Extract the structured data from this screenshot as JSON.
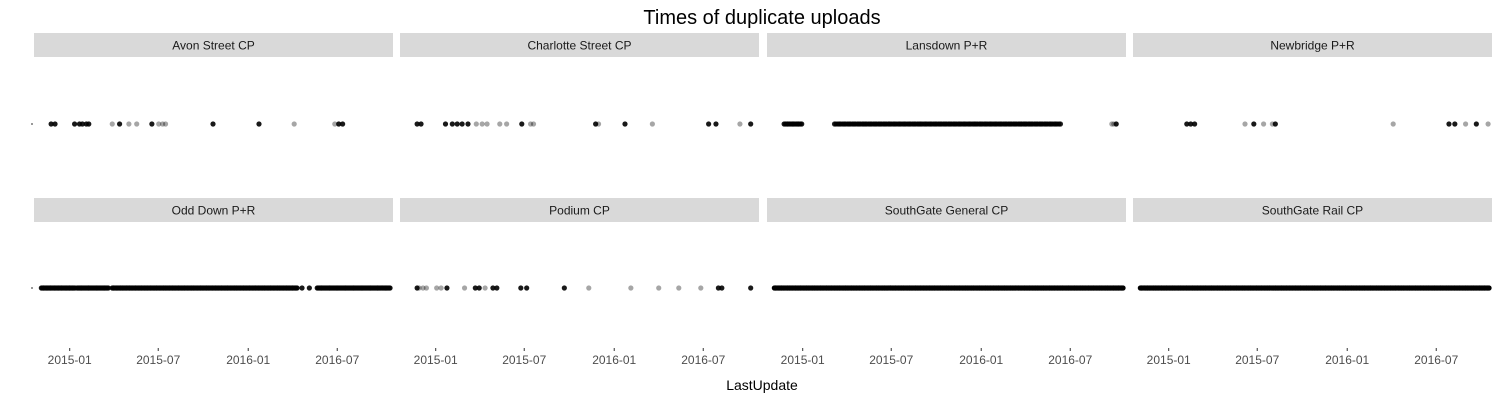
{
  "chart_data": {
    "type": "scatter",
    "title": "Times of duplicate uploads",
    "xlabel": "LastUpdate",
    "ylabel": "",
    "xlim": [
      "2014-10-20",
      "2016-10-23"
    ],
    "x_ticks": [
      {
        "date": "2015-01-01",
        "label": "2015-01"
      },
      {
        "date": "2015-07-01",
        "label": "2015-07"
      },
      {
        "date": "2016-01-01",
        "label": "2016-01"
      },
      {
        "date": "2016-07-01",
        "label": "2016-07"
      }
    ],
    "y_ticks": [
      ""
    ],
    "grid": false,
    "colors": {
      "point": "#000000",
      "strip": "#d9d9d9",
      "strip_text": "#1a1a1a",
      "axis_text": "#4d4d4d",
      "title": "#000000"
    },
    "panels": [
      {
        "label": "Avon Street CP",
        "points": [
          {
            "x": "2014-11-24",
            "o": 0.9
          },
          {
            "x": "2014-12-02",
            "o": 0.9
          },
          {
            "x": "2015-01-11",
            "o": 0.9
          },
          {
            "x": "2015-01-21",
            "o": 0.9
          },
          {
            "x": "2015-01-27",
            "o": 0.9
          },
          {
            "x": "2015-02-04",
            "o": 0.9
          },
          {
            "x": "2015-02-09",
            "o": 0.9
          },
          {
            "x": "2015-03-29",
            "o": 0.35
          },
          {
            "x": "2015-04-13",
            "o": 0.9
          },
          {
            "x": "2015-05-02",
            "o": 0.35
          },
          {
            "x": "2015-05-18",
            "o": 0.35
          },
          {
            "x": "2015-06-18",
            "o": 0.9
          },
          {
            "x": "2015-07-02",
            "o": 0.35
          },
          {
            "x": "2015-07-10",
            "o": 0.35
          },
          {
            "x": "2015-07-16",
            "o": 0.35
          },
          {
            "x": "2015-10-21",
            "o": 0.9
          },
          {
            "x": "2016-01-23",
            "o": 0.9
          },
          {
            "x": "2016-04-04",
            "o": 0.35
          },
          {
            "x": "2016-06-26",
            "o": 0.35
          },
          {
            "x": "2016-07-04",
            "o": 0.9
          },
          {
            "x": "2016-07-12",
            "o": 0.9
          }
        ]
      },
      {
        "label": "Charlotte Street CP",
        "points": [
          {
            "x": "2014-11-24",
            "o": 0.9
          },
          {
            "x": "2014-12-02",
            "o": 0.9
          },
          {
            "x": "2015-01-21",
            "o": 0.9
          },
          {
            "x": "2015-02-04",
            "o": 0.9
          },
          {
            "x": "2015-02-14",
            "o": 0.9
          },
          {
            "x": "2015-02-24",
            "o": 0.9
          },
          {
            "x": "2015-03-08",
            "o": 0.9
          },
          {
            "x": "2015-03-25",
            "o": 0.35
          },
          {
            "x": "2015-04-06",
            "o": 0.35
          },
          {
            "x": "2015-04-16",
            "o": 0.35
          },
          {
            "x": "2015-05-12",
            "o": 0.35
          },
          {
            "x": "2015-05-26",
            "o": 0.35
          },
          {
            "x": "2015-06-26",
            "o": 0.9
          },
          {
            "x": "2015-07-14",
            "o": 0.35
          },
          {
            "x": "2015-07-20",
            "o": 0.35
          },
          {
            "x": "2015-11-24",
            "o": 0.9
          },
          {
            "x": "2015-11-30",
            "o": 0.35
          },
          {
            "x": "2016-01-23",
            "o": 0.9
          },
          {
            "x": "2016-03-19",
            "o": 0.35
          },
          {
            "x": "2016-07-12",
            "o": 0.9
          },
          {
            "x": "2016-07-27",
            "o": 0.9
          },
          {
            "x": "2016-09-14",
            "o": 0.35
          },
          {
            "x": "2016-10-06",
            "o": 0.9
          }
        ]
      },
      {
        "label": "Lansdown P+R",
        "dense": [
          {
            "from": "2014-11-24",
            "to": "2014-12-30",
            "n": 14,
            "o": 0.9
          },
          {
            "from": "2015-03-07",
            "to": "2016-06-11",
            "n": 140,
            "o": 0.85
          }
        ],
        "points": [
          {
            "x": "2016-03-23",
            "o": 0.35
          },
          {
            "x": "2016-04-01",
            "o": 0.35
          },
          {
            "x": "2016-09-24",
            "o": 0.35
          },
          {
            "x": "2016-09-28",
            "o": 0.35
          },
          {
            "x": "2016-10-03",
            "o": 0.9
          }
        ]
      },
      {
        "label": "Newbridge P+R",
        "points": [
          {
            "x": "2015-02-07",
            "o": 0.9
          },
          {
            "x": "2015-02-15",
            "o": 0.9
          },
          {
            "x": "2015-02-23",
            "o": 0.9
          },
          {
            "x": "2015-06-06",
            "o": 0.35
          },
          {
            "x": "2015-06-24",
            "o": 0.9
          },
          {
            "x": "2015-07-14",
            "o": 0.35
          },
          {
            "x": "2015-08-01",
            "o": 0.35
          },
          {
            "x": "2015-08-07",
            "o": 0.9
          },
          {
            "x": "2016-04-04",
            "o": 0.35
          },
          {
            "x": "2016-07-27",
            "o": 0.9
          },
          {
            "x": "2016-08-08",
            "o": 0.9
          },
          {
            "x": "2016-08-30",
            "o": 0.35
          },
          {
            "x": "2016-09-21",
            "o": 0.9
          },
          {
            "x": "2016-10-15",
            "o": 0.35
          }
        ]
      },
      {
        "label": "Odd Down P+R",
        "dense": [
          {
            "from": "2014-11-04",
            "to": "2015-01-12",
            "n": 40,
            "o": 0.9
          },
          {
            "from": "2015-01-16",
            "to": "2015-03-21",
            "n": 35,
            "o": 0.9
          },
          {
            "from": "2015-03-29",
            "to": "2016-04-10",
            "n": 220,
            "o": 0.9
          },
          {
            "from": "2016-05-21",
            "to": "2016-10-17",
            "n": 80,
            "o": 0.9
          }
        ],
        "points": [
          {
            "x": "2016-04-20",
            "o": 0.9
          },
          {
            "x": "2016-05-05",
            "o": 0.9
          }
        ]
      },
      {
        "label": "Podium CP",
        "points": [
          {
            "x": "2014-11-24",
            "o": 0.9
          },
          {
            "x": "2014-11-28",
            "o": 0.35
          },
          {
            "x": "2014-12-06",
            "o": 0.35
          },
          {
            "x": "2014-12-13",
            "o": 0.35
          },
          {
            "x": "2015-01-03",
            "o": 0.35
          },
          {
            "x": "2015-01-12",
            "o": 0.35
          },
          {
            "x": "2015-01-24",
            "o": 0.9
          },
          {
            "x": "2015-03-01",
            "o": 0.35
          },
          {
            "x": "2015-03-23",
            "o": 0.9
          },
          {
            "x": "2015-03-31",
            "o": 0.9
          },
          {
            "x": "2015-04-12",
            "o": 0.35
          },
          {
            "x": "2015-04-28",
            "o": 0.9
          },
          {
            "x": "2015-05-06",
            "o": 0.9
          },
          {
            "x": "2015-06-24",
            "o": 0.9
          },
          {
            "x": "2015-07-06",
            "o": 0.9
          },
          {
            "x": "2015-09-21",
            "o": 0.9
          },
          {
            "x": "2015-11-10",
            "o": 0.35
          },
          {
            "x": "2016-02-04",
            "o": 0.35
          },
          {
            "x": "2016-04-01",
            "o": 0.35
          },
          {
            "x": "2016-05-12",
            "o": 0.35
          },
          {
            "x": "2016-06-26",
            "o": 0.35
          },
          {
            "x": "2016-08-01",
            "o": 0.9
          },
          {
            "x": "2016-08-08",
            "o": 0.9
          },
          {
            "x": "2016-10-06",
            "o": 0.9
          }
        ]
      },
      {
        "label": "SouthGate General CP",
        "dense": [
          {
            "from": "2014-11-04",
            "to": "2016-10-17",
            "n": 420,
            "o": 1
          }
        ],
        "points": []
      },
      {
        "label": "SouthGate Rail CP",
        "dense": [
          {
            "from": "2014-11-04",
            "to": "2016-10-17",
            "n": 420,
            "o": 1
          }
        ],
        "points": []
      }
    ]
  }
}
